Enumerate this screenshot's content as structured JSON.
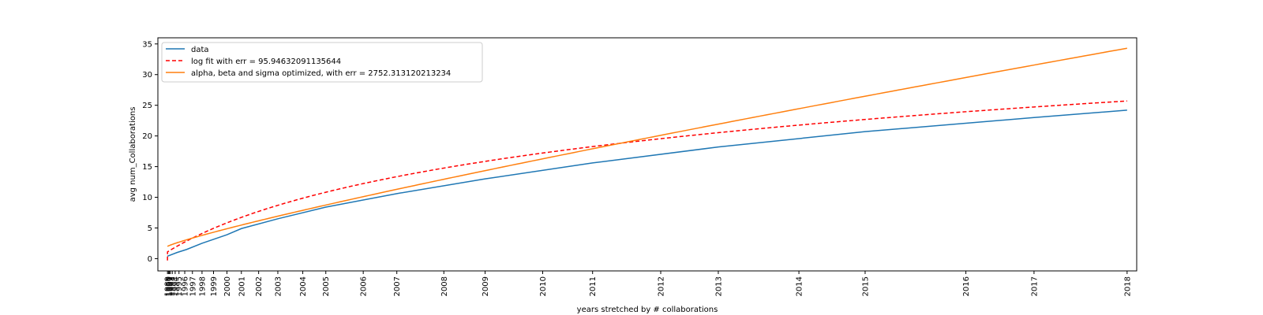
{
  "chart_data": {
    "type": "line",
    "title": "",
    "xlabel": "years stretched by # collaborations",
    "ylabel": "avg num_Collaborations",
    "ylim": [
      -2,
      36
    ],
    "yticks": [
      0,
      5,
      10,
      15,
      20,
      25,
      30,
      35
    ],
    "xlim": [
      -0.01,
      1.01
    ],
    "x_tick_labels": [
      {
        "label": "1989",
        "x": 0.0
      },
      {
        "label": "1990",
        "x": 0.001
      },
      {
        "label": "1991",
        "x": 0.002
      },
      {
        "label": "1992",
        "x": 0.003
      },
      {
        "label": "1993",
        "x": 0.005
      },
      {
        "label": "1994",
        "x": 0.008
      },
      {
        "label": "1995",
        "x": 0.012
      },
      {
        "label": "1996",
        "x": 0.018
      },
      {
        "label": "1997",
        "x": 0.026
      },
      {
        "label": "1998",
        "x": 0.036
      },
      {
        "label": "1999",
        "x": 0.048
      },
      {
        "label": "2000",
        "x": 0.062
      },
      {
        "label": "2001",
        "x": 0.077
      },
      {
        "label": "2002",
        "x": 0.095
      },
      {
        "label": "2003",
        "x": 0.115
      },
      {
        "label": "2004",
        "x": 0.141
      },
      {
        "label": "2005",
        "x": 0.165
      },
      {
        "label": "2006",
        "x": 0.204
      },
      {
        "label": "2007",
        "x": 0.239
      },
      {
        "label": "2008",
        "x": 0.288
      },
      {
        "label": "2009",
        "x": 0.331
      },
      {
        "label": "2010",
        "x": 0.391
      },
      {
        "label": "2011",
        "x": 0.443
      },
      {
        "label": "2012",
        "x": 0.514
      },
      {
        "label": "2013",
        "x": 0.574
      },
      {
        "label": "2014",
        "x": 0.658
      },
      {
        "label": "2015",
        "x": 0.727
      },
      {
        "label": "2016",
        "x": 0.832
      },
      {
        "label": "2017",
        "x": 0.903
      },
      {
        "label": "2018",
        "x": 1.0
      }
    ],
    "series": [
      {
        "name": "data",
        "color": "#1f77b4",
        "dash": "solid",
        "x": [
          0.0,
          0.01,
          0.02,
          0.036,
          0.062,
          0.077,
          0.115,
          0.165,
          0.239,
          0.331,
          0.443,
          0.574,
          0.727,
          0.903,
          1.0
        ],
        "y": [
          0.4,
          1.0,
          1.5,
          2.5,
          3.9,
          4.9,
          6.5,
          8.4,
          10.6,
          13.0,
          15.6,
          18.2,
          20.7,
          23.0,
          24.2
        ]
      },
      {
        "name": "log fit with err = 95.94632091135644",
        "color": "#ff0000",
        "dash": "dashed",
        "fn": "log",
        "y0": 1.1,
        "slope": 24.6,
        "start": -0.3
      },
      {
        "name": "alpha, beta and sigma optimized, with err = 2752.313120213234",
        "color": "#ff7f0e",
        "dash": "solid",
        "fn": "power",
        "base": 2.0,
        "a": 32.3,
        "p": 0.87
      }
    ],
    "legend_position": "upper-left",
    "grid": false
  }
}
